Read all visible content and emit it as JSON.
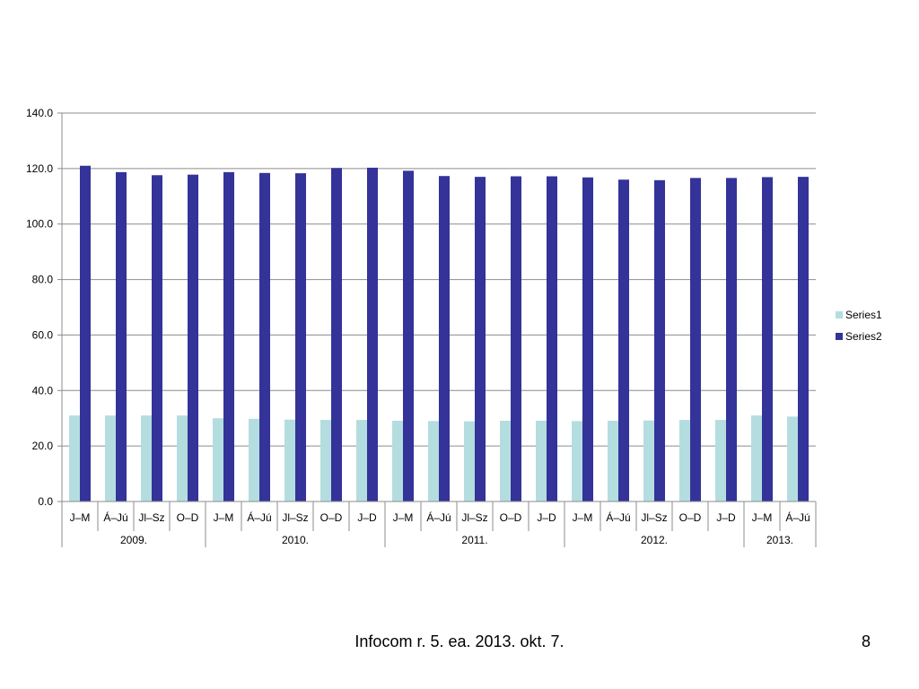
{
  "chart_data": {
    "type": "bar",
    "categories": [
      "J–M",
      "Á–Jú",
      "Jl–Sz",
      "O–D",
      "J–M",
      "Á–Jú",
      "Jl–Sz",
      "O–D",
      "J–D",
      "J–M",
      "Á–Jú",
      "Jl–Sz",
      "O–D",
      "J–D",
      "J–M",
      "Á–Jú",
      "Jl–Sz",
      "O–D",
      "J–D",
      "J–M",
      "Á–Jú"
    ],
    "groups": [
      {
        "label": "2009.",
        "count": 4
      },
      {
        "label": "2010.",
        "count": 5
      },
      {
        "label": "2011.",
        "count": 5
      },
      {
        "label": "2012.",
        "count": 5
      },
      {
        "label": "2013.",
        "count": 2
      }
    ],
    "series": [
      {
        "name": "Series1",
        "color": "#b4dde0",
        "values": [
          31.0,
          31.0,
          31.0,
          31.0,
          30.0,
          29.8,
          29.5,
          29.4,
          29.4,
          29.1,
          29.0,
          28.9,
          29.1,
          29.1,
          29.0,
          29.1,
          29.2,
          29.4,
          29.4,
          31.0,
          30.6
        ]
      },
      {
        "name": "Series2",
        "color": "#333399",
        "values": [
          121.0,
          118.7,
          117.6,
          117.8,
          118.7,
          118.4,
          118.3,
          120.2,
          120.3,
          119.2,
          117.3,
          117.0,
          117.2,
          117.2,
          116.8,
          116.0,
          115.8,
          116.6,
          116.6,
          116.9,
          117.0
        ]
      }
    ],
    "ylim": [
      0,
      140
    ],
    "yticks": [
      "0.0",
      "20.0",
      "40.0",
      "60.0",
      "80.0",
      "100.0",
      "120.0",
      "140.0"
    ],
    "grid": true,
    "legend_position": "right",
    "title": "",
    "xlabel": "",
    "ylabel": ""
  },
  "footer": {
    "text": "Infocom r. 5. ea. 2013. okt. 7.",
    "page_number": "8"
  }
}
